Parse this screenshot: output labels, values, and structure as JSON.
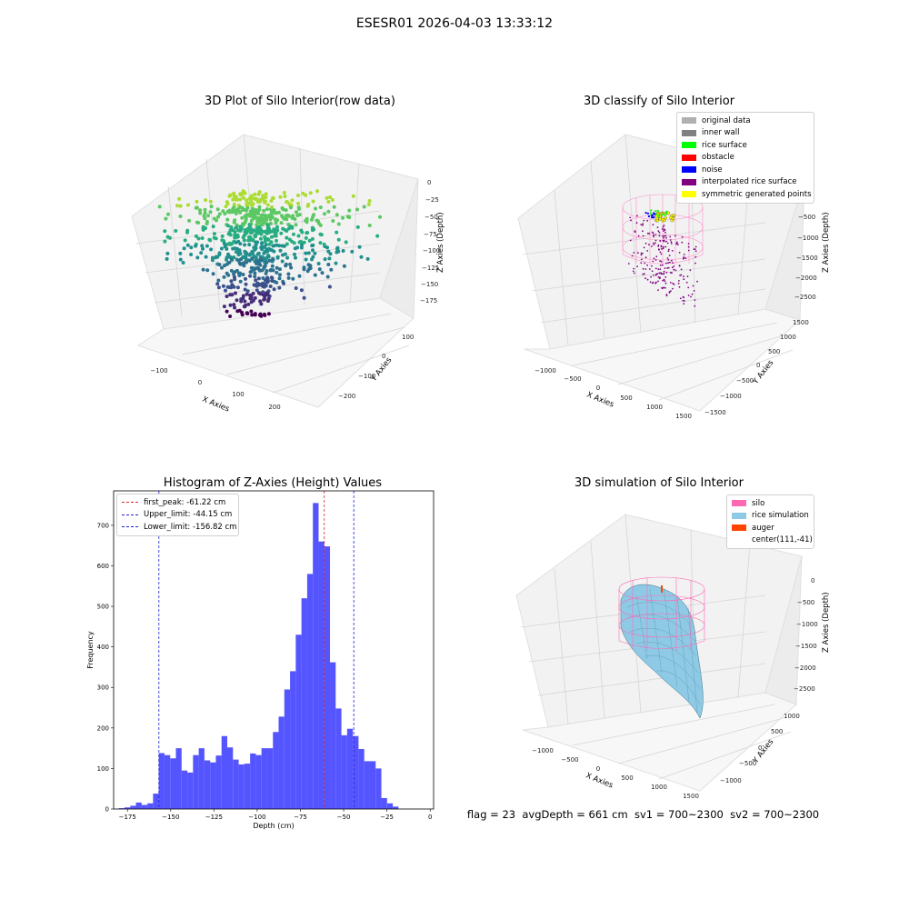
{
  "suptitle": "ESESR01 2026-04-03 13:33:12",
  "status_line": "flag = 23  avgDepth = 661 cm  sv1 = 700~2300  sv2 = 700~2300",
  "colors": {
    "hist_bar": "#5555ff",
    "first_peak": "#d62728",
    "limits": "#1f1fd6",
    "silo": "#ff69b4",
    "rice": "#8ecae6",
    "auger": "#ff4500"
  },
  "chart_data": [
    {
      "type": "scatter3d",
      "title": "3D Plot of Silo Interior(row data)",
      "xlabel": "X Axies",
      "ylabel": "Y Axies",
      "zlabel": "Z Axies (Depth)",
      "xticks": [
        "−100",
        "0",
        "100",
        "200"
      ],
      "yticks": [
        "100",
        "0",
        "−100",
        "−200"
      ],
      "zticks": [
        "0",
        "−25",
        "−50",
        "−75",
        "−100",
        "−125",
        "−150",
        "−175"
      ],
      "colormap": "viridis",
      "grid": true
    },
    {
      "type": "scatter3d",
      "title": "3D classify of Silo Interior",
      "xlabel": "X Axies",
      "ylabel": "Y Axies",
      "zlabel": "Z Axies (Depth)",
      "xticks": [
        "−1000",
        "−500",
        "0",
        "500",
        "1000",
        "1500"
      ],
      "yticks": [
        "1500",
        "1000",
        "500",
        "0",
        "−500",
        "−1000",
        "−1500"
      ],
      "zticks": [
        "−500",
        "−1000",
        "−1500",
        "−2000",
        "−2500"
      ],
      "legend": [
        {
          "label": "original data",
          "color": "#b0b0b0"
        },
        {
          "label": "inner wall",
          "color": "#808080"
        },
        {
          "label": "rice surface",
          "color": "#00ff00"
        },
        {
          "label": "obstacle",
          "color": "#ff0000"
        },
        {
          "label": "noise",
          "color": "#0000ff"
        },
        {
          "label": "interpolated rice surface",
          "color": "#800080"
        },
        {
          "label": "symmetric generated points",
          "color": "#ffff00"
        }
      ],
      "legend_position": "top-right",
      "grid": true
    },
    {
      "type": "bar",
      "title": "Histogram of Z-Axies (Height) Values",
      "xlabel": "Depth (cm)",
      "ylabel": "Frequency",
      "xlim": [
        -183,
        2
      ],
      "ylim": [
        0,
        785
      ],
      "xticks": [
        -175,
        -150,
        -125,
        -100,
        -75,
        -50,
        -25,
        0
      ],
      "yticks": [
        0,
        100,
        200,
        300,
        400,
        500,
        600,
        700
      ],
      "bin_start": -180,
      "bin_width": 3.3,
      "values": [
        2,
        4,
        8,
        16,
        10,
        14,
        38,
        138,
        133,
        125,
        150,
        95,
        90,
        133,
        150,
        120,
        115,
        132,
        180,
        152,
        122,
        110,
        112,
        137,
        133,
        150,
        150,
        190,
        228,
        295,
        340,
        430,
        520,
        580,
        755,
        660,
        648,
        362,
        248,
        182,
        198,
        180,
        148,
        118,
        118,
        100,
        27,
        14,
        6
      ],
      "vlines": [
        {
          "label": "first_peak: -61.22 cm",
          "x": -61.22,
          "color": "#d62728"
        },
        {
          "label": "Upper_limit: -44.15 cm",
          "x": -44.15,
          "color": "#1f1fd6"
        },
        {
          "label": "Lower_limit: -156.82 cm",
          "x": -156.82,
          "color": "#1f1fd6"
        }
      ],
      "legend_position": "top-left",
      "grid": false
    },
    {
      "type": "surface3d",
      "title": "3D simulation of Silo Interior",
      "xlabel": "X Axies",
      "ylabel": "Y Axies",
      "zlabel": "Z Axies (Depth)",
      "xticks": [
        "−1000",
        "−500",
        "0",
        "500",
        "1000",
        "1500"
      ],
      "yticks": [
        "1000",
        "500",
        "0",
        "−500",
        "−1000"
      ],
      "zticks": [
        "0",
        "−500",
        "−1000",
        "−1500",
        "−2000",
        "−2500"
      ],
      "legend": [
        {
          "label": "silo",
          "color": "#ff69b4"
        },
        {
          "label": "rice simulation",
          "color": "#8ecae6"
        },
        {
          "label": "auger",
          "color": "#ff4500"
        },
        {
          "label": "center(111,-41)",
          "color": ""
        }
      ],
      "legend_position": "top-right",
      "grid": true
    }
  ]
}
